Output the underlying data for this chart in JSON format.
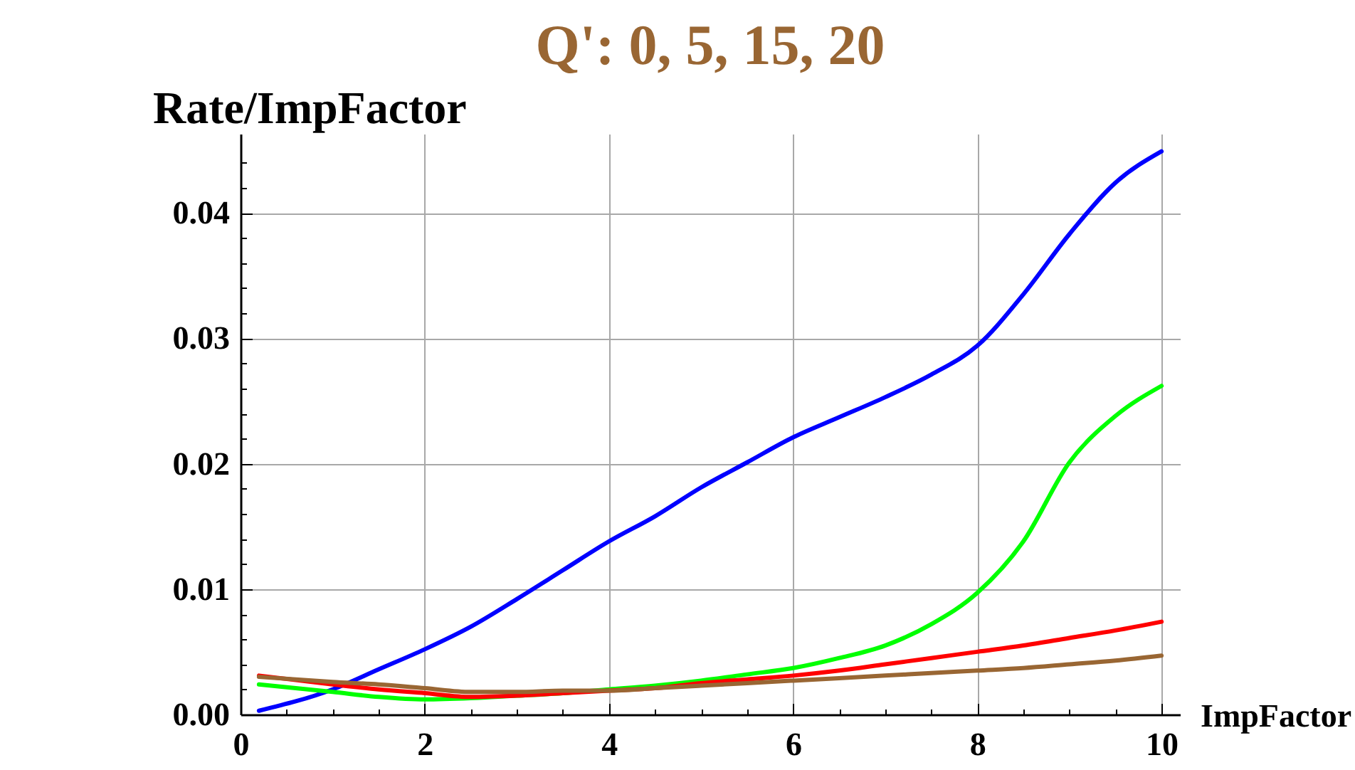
{
  "chart_data": {
    "type": "line",
    "title": "Q': 0, 5, 15, 20",
    "xlabel": "ImpFactor",
    "ylabel": "Rate/ImpFactor",
    "x": [
      0.2,
      1,
      1.5,
      2,
      2.5,
      3,
      3.5,
      4,
      4.5,
      5,
      5.5,
      6,
      6.5,
      7,
      7.5,
      8,
      8.5,
      9,
      9.5,
      10
    ],
    "series": [
      {
        "color": "#0000ff",
        "values": [
          0.0003,
          0.002,
          0.0036,
          0.0052,
          0.007,
          0.0092,
          0.0115,
          0.0138,
          0.0158,
          0.0181,
          0.0201,
          0.0221,
          0.0237,
          0.0253,
          0.0271,
          0.0294,
          0.0335,
          0.0383,
          0.0424,
          0.0449
        ]
      },
      {
        "color": "#00ff00",
        "values": [
          0.0024,
          0.0018,
          0.0014,
          0.0012,
          0.0013,
          0.0015,
          0.0017,
          0.002,
          0.0023,
          0.0027,
          0.0032,
          0.0037,
          0.0045,
          0.0055,
          0.0072,
          0.0097,
          0.0138,
          0.0201,
          0.0238,
          0.0262
        ]
      },
      {
        "color": "#ff0000",
        "values": [
          0.0031,
          0.0024,
          0.002,
          0.0017,
          0.0014,
          0.0015,
          0.0017,
          0.0019,
          0.0021,
          0.0025,
          0.0028,
          0.0031,
          0.0035,
          0.004,
          0.0045,
          0.005,
          0.0055,
          0.0061,
          0.0067,
          0.0074
        ]
      },
      {
        "color": "#996633",
        "values": [
          0.003,
          0.0026,
          0.0024,
          0.0021,
          0.0018,
          0.0018,
          0.0019,
          0.0019,
          0.0021,
          0.0023,
          0.0025,
          0.0027,
          0.0029,
          0.0031,
          0.0033,
          0.0035,
          0.0037,
          0.004,
          0.0043,
          0.0047
        ]
      }
    ],
    "xlim": [
      0,
      10.2
    ],
    "ylim": [
      0,
      0.0463
    ],
    "xticks": [
      0,
      {
        "value": 0.5,
        "label": null
      },
      {
        "value": 1,
        "label": null
      },
      {
        "value": 1.5,
        "label": null
      },
      2,
      {
        "value": 2.5,
        "label": null
      },
      {
        "value": 3,
        "label": null
      },
      {
        "value": 3.5,
        "label": null
      },
      4,
      {
        "value": 4.5,
        "label": null
      },
      {
        "value": 5,
        "label": null
      },
      {
        "value": 5.5,
        "label": null
      },
      6,
      {
        "value": 6.5,
        "label": null
      },
      {
        "value": 7,
        "label": null
      },
      {
        "value": 7.5,
        "label": null
      },
      8,
      {
        "value": 8.5,
        "label": null
      },
      {
        "value": 9,
        "label": null
      },
      {
        "value": 9.5,
        "label": null
      },
      10
    ],
    "yticks": [
      {
        "value": 0,
        "label": "0.00"
      },
      {
        "value": 0.002,
        "label": null
      },
      {
        "value": 0.004,
        "label": null
      },
      {
        "value": 0.006,
        "label": null
      },
      {
        "value": 0.008,
        "label": null
      },
      0.01,
      {
        "value": 0.012,
        "label": null
      },
      {
        "value": 0.014,
        "label": null
      },
      {
        "value": 0.016,
        "label": null
      },
      {
        "value": 0.018,
        "label": null
      },
      0.02,
      {
        "value": 0.022,
        "label": null
      },
      {
        "value": 0.024,
        "label": null
      },
      {
        "value": 0.026,
        "label": null
      },
      {
        "value": 0.028,
        "label": null
      },
      0.03,
      {
        "value": 0.032,
        "label": null
      },
      {
        "value": 0.034,
        "label": null
      },
      {
        "value": 0.036,
        "label": null
      },
      {
        "value": 0.038,
        "label": null
      },
      0.04,
      {
        "value": 0.042,
        "label": null
      },
      {
        "value": 0.044,
        "label": null
      }
    ],
    "grid": true,
    "line_style": "solid"
  }
}
